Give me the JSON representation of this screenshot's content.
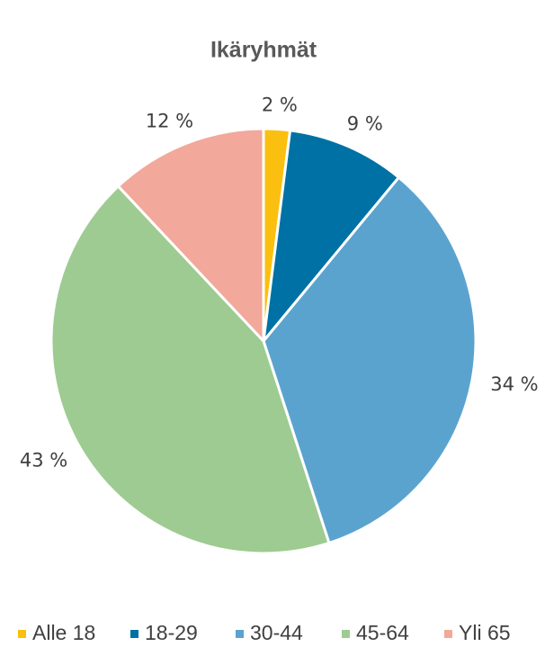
{
  "chart_data": {
    "type": "pie",
    "title": "Ikäryhmät",
    "categories": [
      "Alle 18",
      "18-29",
      "30-44",
      "45-64",
      "Yli 65"
    ],
    "values": [
      2,
      9,
      34,
      43,
      12
    ],
    "value_labels": [
      "2 %",
      "9 %",
      "34 %",
      "43 %",
      "12 %"
    ],
    "colors": [
      "#fbbf0f",
      "#0071a4",
      "#5ba3cf",
      "#9ecb91",
      "#f2a89a"
    ],
    "legend": "bottom"
  }
}
